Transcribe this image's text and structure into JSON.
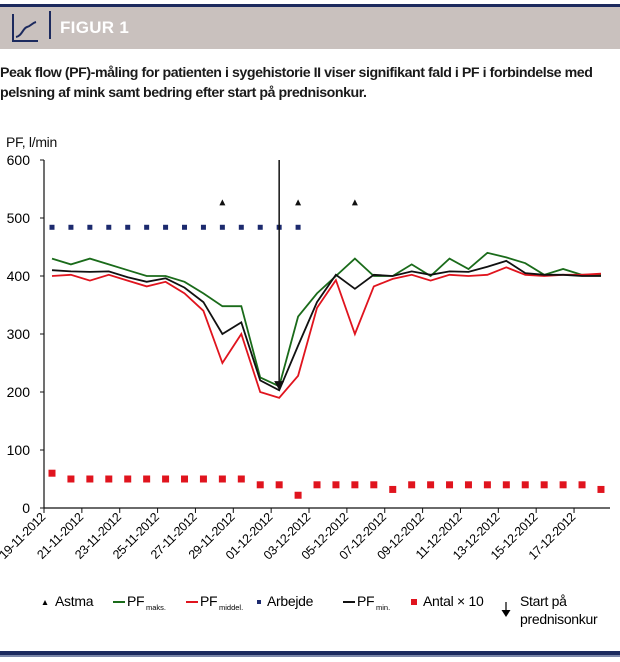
{
  "header": {
    "title": "FIGUR 1",
    "icon": "line-chart-icon"
  },
  "caption": "Peak flow (PF)-måling for patienten i sygehistorie II viser signifikant fald i PF i forbindelse med pelsning af mink samt bedring efter start på prednisonkur.",
  "colors": {
    "header_bg": "#c9c1be",
    "navy": "#1c2a5e",
    "pf_maks": "#1a6b1a",
    "pf_middel": "#e0141e",
    "pf_min": "#111111",
    "arbejde": "#1c2a6e",
    "antal": "#e0141e"
  },
  "chart_data": {
    "type": "line",
    "title": "",
    "ylabel": "PF, l/min",
    "xlabel": "",
    "ylim": [
      0,
      600
    ],
    "yticks": [
      0,
      100,
      200,
      300,
      400,
      500,
      600
    ],
    "xtick_labels": [
      "19-11-2012",
      "21-11-2012",
      "23-11-2012",
      "25-11-2012",
      "27-11-2012",
      "29-11-2012",
      "01-12-2012",
      "03-12-2012",
      "05-12-2012",
      "07-12-2012",
      "09-12-2012",
      "11-12-2012",
      "13-12-2012",
      "15-12-2012",
      "17-12-2012"
    ],
    "n_days": 30,
    "series": [
      {
        "name": "PF maks.",
        "key": "maks",
        "kind": "line",
        "color": "#1a6b1a",
        "values": [
          430,
          420,
          430,
          420,
          410,
          400,
          400,
          390,
          370,
          348,
          348,
          225,
          210,
          330,
          370,
          400,
          430,
          400,
          400,
          420,
          400,
          430,
          412,
          440,
          432,
          422,
          402,
          412,
          402,
          402
        ]
      },
      {
        "name": "PF middel.",
        "key": "middel",
        "kind": "line",
        "color": "#e0141e",
        "values": [
          400,
          402,
          392,
          402,
          392,
          382,
          390,
          370,
          340,
          250,
          300,
          200,
          190,
          228,
          345,
          393,
          300,
          382,
          395,
          402,
          392,
          402,
          400,
          402,
          415,
          402,
          400,
          402,
          402,
          404
        ]
      },
      {
        "name": "PF min.",
        "key": "min",
        "kind": "line",
        "color": "#111111",
        "values": [
          410,
          408,
          407,
          408,
          398,
          390,
          396,
          380,
          355,
          300,
          320,
          220,
          203,
          280,
          355,
          402,
          378,
          402,
          400,
          408,
          402,
          408,
          407,
          416,
          426,
          405,
          402,
          402,
          400,
          400
        ]
      },
      {
        "name": "Arbejde",
        "kind": "square",
        "color": "#1c2a6e",
        "values": [
          484,
          484,
          484,
          484,
          484,
          484,
          484,
          484,
          484,
          484,
          484,
          484,
          484,
          484,
          null,
          null,
          null,
          null,
          null,
          null,
          null,
          null,
          null,
          null,
          null,
          null,
          null,
          null,
          null,
          null
        ]
      },
      {
        "name": "Antal × 10",
        "kind": "square",
        "color": "#e0141e",
        "values": [
          60,
          50,
          50,
          50,
          50,
          50,
          50,
          50,
          50,
          50,
          50,
          40,
          40,
          22,
          40,
          40,
          40,
          40,
          32,
          40,
          40,
          40,
          40,
          40,
          40,
          40,
          40,
          40,
          40,
          32
        ]
      },
      {
        "name": "Astma",
        "kind": "triangle",
        "color": "#111111",
        "day_indices": [
          9,
          13,
          16
        ],
        "value": 527
      }
    ],
    "annotation": {
      "label": "Start på prednisonkur",
      "day_index": 12,
      "from": 600,
      "to": 205
    },
    "legend": {
      "placement": "bottom",
      "items": [
        {
          "kind": "triangle",
          "label": "Astma",
          "sub": ""
        },
        {
          "kind": "line",
          "label": "PF",
          "sub": "maks.",
          "color": "#1a6b1a"
        },
        {
          "kind": "line",
          "label": "PF",
          "sub": "middel.",
          "color": "#e0141e"
        },
        {
          "kind": "square",
          "label": "Arbejde",
          "sub": "",
          "color": "#1c2a6e"
        },
        {
          "kind": "line",
          "label": "PF",
          "sub": "min.",
          "color": "#111111"
        },
        {
          "kind": "square",
          "label": "Antal × 10",
          "sub": "",
          "color": "#e0141e"
        },
        {
          "kind": "arrow",
          "label": "Start på",
          "label2": "prednisonkur"
        }
      ]
    }
  }
}
